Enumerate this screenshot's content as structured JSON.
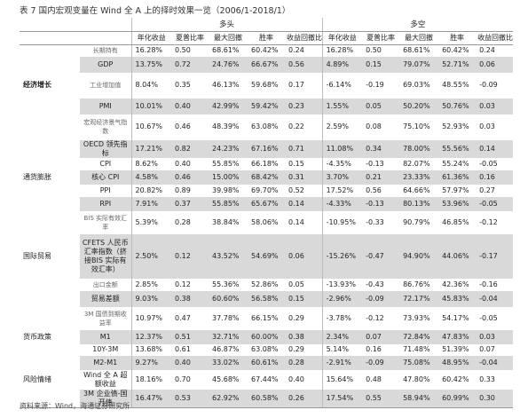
{
  "title": "表 7 国内宏观变量在 Wind 全 A 上的择时效果一览（2006/1-2018/1）",
  "headers": {
    "long_label": "多头",
    "short_label": "多空",
    "cols": [
      "年化收益",
      "夏普比率",
      "最大回撤",
      "胜率",
      "收益回撤比",
      "年化收益",
      "夏普比率",
      "最大回撤",
      "胜率",
      "收益回撤比"
    ]
  },
  "rows": [
    {
      "cat": "",
      "ind": "长期持有",
      "small": true,
      "shade": false,
      "v": [
        "16.28%",
        "0.50",
        "68.61%",
        "60.42%",
        "0.24",
        "16.28%",
        "0.50",
        "68.61%",
        "60.42%",
        "0.24"
      ]
    },
    {
      "cat": "",
      "ind": "GDP",
      "small": false,
      "shade": true,
      "v": [
        "13.75%",
        "0.72",
        "24.76%",
        "66.67%",
        "0.56",
        "4.89%",
        "0.15",
        "79.07%",
        "52.71%",
        "0.06"
      ]
    },
    {
      "cat": "经济增长",
      "ind": "工业增加值",
      "small": true,
      "shade": false,
      "v": [
        "8.04%",
        "0.35",
        "46.13%",
        "59.68%",
        "0.17",
        "-6.14%",
        "-0.19",
        "69.03%",
        "48.55%",
        "-0.09"
      ]
    },
    {
      "cat": "",
      "ind": "PMI",
      "small": false,
      "shade": true,
      "v": [
        "10.01%",
        "0.40",
        "42.99%",
        "59.42%",
        "0.23",
        "1.55%",
        "0.05",
        "50.20%",
        "50.76%",
        "0.03"
      ]
    },
    {
      "cat": "",
      "ind": "宏观经济景气指数",
      "small": true,
      "shade": false,
      "v": [
        "10.67%",
        "0.46",
        "48.39%",
        "63.08%",
        "0.22",
        "2.59%",
        "0.08",
        "75.10%",
        "52.93%",
        "0.03"
      ]
    },
    {
      "cat": "",
      "ind": "OECD 领先指标",
      "small": false,
      "shade": true,
      "v": [
        "17.21%",
        "0.82",
        "24.23%",
        "67.16%",
        "0.71",
        "11.08%",
        "0.34",
        "78.00%",
        "55.56%",
        "0.14"
      ]
    },
    {
      "cat": "",
      "ind": "CPI",
      "small": false,
      "shade": false,
      "v": [
        "8.62%",
        "0.40",
        "55.85%",
        "66.18%",
        "0.15",
        "-4.35%",
        "-0.13",
        "82.07%",
        "55.24%",
        "-0.05"
      ]
    },
    {
      "cat": "通货膨胀",
      "ind": "核心 CPI",
      "small": false,
      "shade": true,
      "v": [
        "4.58%",
        "0.46",
        "15.00%",
        "68.42%",
        "0.31",
        "3.70%",
        "0.21",
        "23.33%",
        "61.36%",
        "0.16"
      ]
    },
    {
      "cat": "",
      "ind": "PPI",
      "small": false,
      "shade": false,
      "v": [
        "20.82%",
        "0.89",
        "39.98%",
        "69.70%",
        "0.52",
        "17.52%",
        "0.56",
        "64.66%",
        "57.97%",
        "0.27"
      ]
    },
    {
      "cat": "",
      "ind": "RPI",
      "small": false,
      "shade": true,
      "v": [
        "7.91%",
        "0.37",
        "55.85%",
        "65.67%",
        "0.14",
        "-4.33%",
        "-0.13",
        "80.13%",
        "53.96%",
        "-0.05"
      ]
    },
    {
      "cat": "",
      "ind": "BIS 实际有效汇率",
      "small": true,
      "shade": false,
      "v": [
        "5.39%",
        "0.28",
        "38.84%",
        "58.06%",
        "0.14",
        "-10.95%",
        "-0.33",
        "90.79%",
        "46.85%",
        "-0.12"
      ]
    },
    {
      "cat": "国际贸易",
      "ind": "CFETS 人民币汇率指数（挤接BIS 实际有效汇率）",
      "small": false,
      "shade": true,
      "v": [
        "2.50%",
        "0.12",
        "43.52%",
        "54.69%",
        "0.06",
        "-15.26%",
        "-0.47",
        "94.90%",
        "44.06%",
        "-0.17"
      ]
    },
    {
      "cat": "",
      "ind": "出口金额",
      "small": true,
      "shade": false,
      "v": [
        "2.85%",
        "0.12",
        "55.36%",
        "52.86%",
        "0.05",
        "-13.93%",
        "-0.43",
        "86.76%",
        "42.36%",
        "-0.16"
      ]
    },
    {
      "cat": "",
      "ind": "贸易差额",
      "small": false,
      "shade": true,
      "v": [
        "9.03%",
        "0.38",
        "60.60%",
        "56.58%",
        "0.15",
        "-2.96%",
        "-0.09",
        "72.17%",
        "45.83%",
        "-0.04"
      ]
    },
    {
      "cat": "",
      "ind": "3M 国债到期收益率",
      "small": true,
      "shade": false,
      "v": [
        "10.97%",
        "0.47",
        "37.78%",
        "66.15%",
        "0.29",
        "-3.78%",
        "-0.12",
        "73.93%",
        "54.17%",
        "-0.05"
      ]
    },
    {
      "cat": "货币政策",
      "ind": "M1",
      "small": false,
      "shade": true,
      "v": [
        "12.37%",
        "0.51",
        "32.71%",
        "60.00%",
        "0.38",
        "2.34%",
        "0.07",
        "72.84%",
        "47.83%",
        "0.03"
      ]
    },
    {
      "cat": "",
      "ind": "10Y-3M",
      "small": false,
      "shade": false,
      "v": [
        "13.68%",
        "0.61",
        "46.87%",
        "63.08%",
        "0.29",
        "5.14%",
        "0.16",
        "71.48%",
        "51.39%",
        "0.07"
      ]
    },
    {
      "cat": "",
      "ind": "M2-M1",
      "small": false,
      "shade": true,
      "v": [
        "9.27%",
        "0.40",
        "33.02%",
        "60.61%",
        "0.28",
        "-2.91%",
        "-0.09",
        "75.08%",
        "48.95%",
        "-0.04"
      ]
    },
    {
      "cat": "风险情绪",
      "ind": "Wind 全 A 超额收益",
      "small": false,
      "shade": false,
      "v": [
        "18.16%",
        "0.70",
        "45.68%",
        "67.44%",
        "0.40",
        "15.64%",
        "0.48",
        "47.80%",
        "60.42%",
        "0.33"
      ]
    },
    {
      "cat": "",
      "ind": "3M 企业债-国开债",
      "small": false,
      "shade": true,
      "v": [
        "16.47%",
        "0.53",
        "62.92%",
        "60.58%",
        "0.26",
        "17.54%",
        "0.55",
        "58.94%",
        "60.99%",
        "0.30"
      ]
    }
  ],
  "footer": "资料来源：Wind，海通证券研究所",
  "colors": {
    "red": "#c0392b",
    "shade": "#d9d9d9"
  }
}
